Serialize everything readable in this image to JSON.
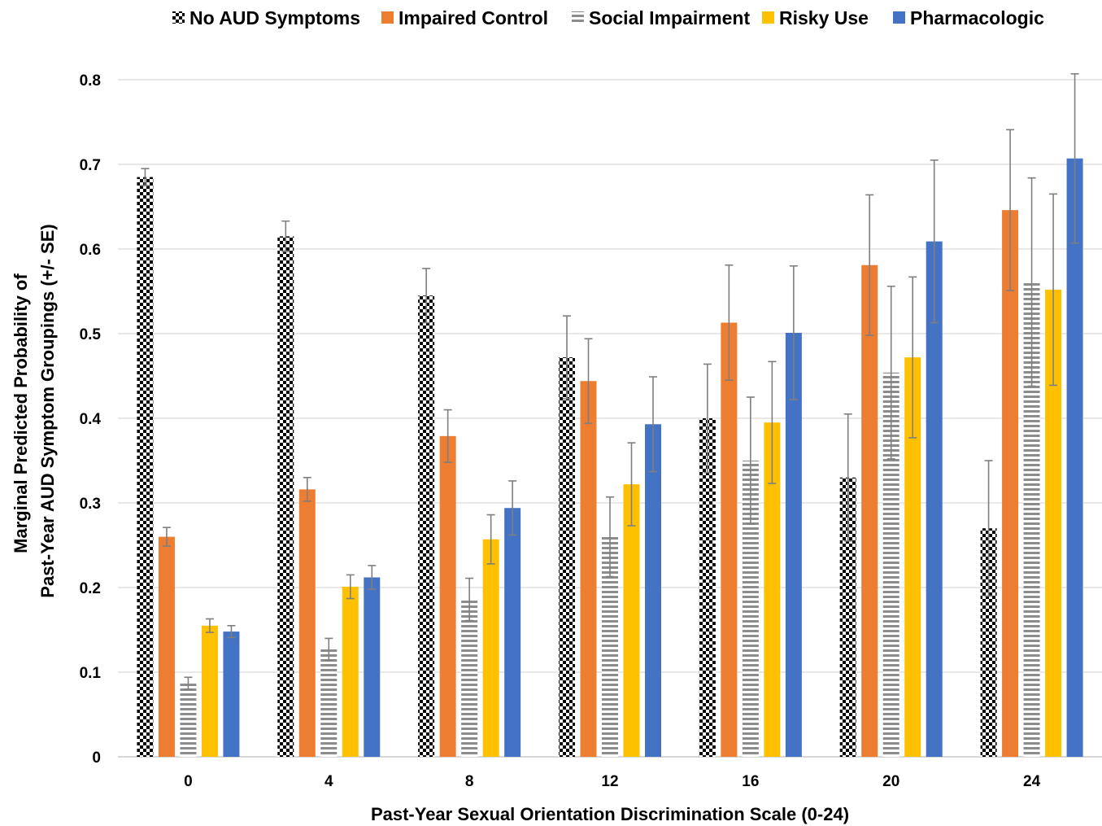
{
  "chart_data": {
    "type": "bar",
    "title": "",
    "xlabel": "Past-Year Sexual Orientation Discrimination Scale (0-24)",
    "ylabel_lines": [
      "Marginal Predicted Probability of",
      "Past-Year AUD Symptom  Groupings (+/- SE)"
    ],
    "categories": [
      "0",
      "4",
      "8",
      "12",
      "16",
      "20",
      "24"
    ],
    "ylim": [
      0,
      0.8
    ],
    "yticks": [
      "0",
      "0.1",
      "0.2",
      "0.3",
      "0.4",
      "0.5",
      "0.6",
      "0.7",
      "0.8"
    ],
    "grid": true,
    "legend_position": "top",
    "error_bars": "+/- SE",
    "series": [
      {
        "name": "No AUD Symptoms",
        "pattern": "checkerboard",
        "color": "#000000",
        "values": [
          0.685,
          0.615,
          0.545,
          0.472,
          0.4,
          0.33,
          0.27
        ],
        "error": [
          0.01,
          0.018,
          0.032,
          0.049,
          0.064,
          0.075,
          0.08
        ]
      },
      {
        "name": "Impaired Control",
        "pattern": "solid",
        "color": "#ED7D31",
        "values": [
          0.26,
          0.316,
          0.379,
          0.444,
          0.513,
          0.581,
          0.646
        ],
        "error": [
          0.011,
          0.014,
          0.031,
          0.05,
          0.068,
          0.083,
          0.095
        ]
      },
      {
        "name": "Social Impairment",
        "pattern": "horizontal-stripes",
        "color": "#8C8C8C",
        "values": [
          0.087,
          0.127,
          0.186,
          0.26,
          0.35,
          0.454,
          0.561
        ],
        "error": [
          0.007,
          0.013,
          0.025,
          0.047,
          0.075,
          0.102,
          0.123
        ]
      },
      {
        "name": "Risky Use",
        "pattern": "solid",
        "color": "#FFC000",
        "values": [
          0.155,
          0.201,
          0.257,
          0.322,
          0.395,
          0.472,
          0.552
        ],
        "error": [
          0.008,
          0.014,
          0.029,
          0.049,
          0.072,
          0.095,
          0.113
        ]
      },
      {
        "name": "Pharmacologic",
        "pattern": "solid",
        "color": "#4472C4",
        "values": [
          0.148,
          0.212,
          0.294,
          0.393,
          0.501,
          0.609,
          0.707
        ],
        "error": [
          0.007,
          0.014,
          0.032,
          0.056,
          0.079,
          0.096,
          0.1
        ]
      }
    ]
  }
}
